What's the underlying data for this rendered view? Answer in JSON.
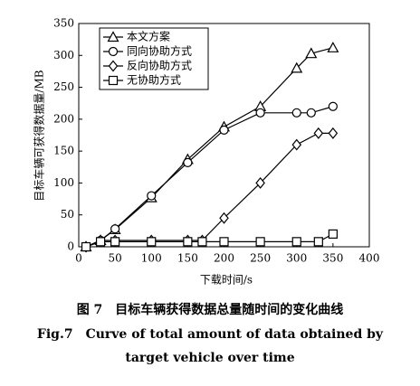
{
  "chart_data": {
    "type": "line",
    "xlabel": "下载时间/s",
    "ylabel": "目标车辆可获得数据量/MB",
    "xlim": [
      0,
      400
    ],
    "xticks": [
      0,
      50,
      100,
      150,
      200,
      250,
      300,
      350,
      400
    ],
    "ylim": [
      0,
      350
    ],
    "yticks": [
      0,
      50,
      100,
      150,
      200,
      250,
      300,
      350
    ],
    "legend": "upper left",
    "series": [
      {
        "name": "本文方案",
        "color": "#000000",
        "marker": "triangle",
        "x": [
          10,
          30,
          50,
          100,
          150,
          200,
          250,
          300,
          320,
          350
        ],
        "values": [
          0,
          10,
          27,
          77,
          137,
          188,
          220,
          280,
          303,
          312
        ]
      },
      {
        "name": "同向协助方式",
        "color": "#000000",
        "marker": "circle",
        "x": [
          10,
          30,
          50,
          100,
          150,
          200,
          250,
          300,
          320,
          350
        ],
        "values": [
          0,
          10,
          28,
          80,
          132,
          183,
          210,
          210,
          210,
          220
        ]
      },
      {
        "name": "反向协助方式",
        "color": "#000000",
        "marker": "diamond",
        "x": [
          10,
          30,
          50,
          100,
          150,
          170,
          200,
          250,
          300,
          330,
          350
        ],
        "values": [
          0,
          10,
          10,
          10,
          10,
          10,
          45,
          100,
          160,
          178,
          178
        ]
      },
      {
        "name": "无协助方式",
        "color": "#000000",
        "marker": "square",
        "x": [
          10,
          30,
          50,
          100,
          150,
          170,
          200,
          250,
          300,
          330,
          350
        ],
        "values": [
          0,
          8,
          8,
          8,
          8,
          8,
          8,
          8,
          8,
          8,
          20
        ]
      }
    ]
  },
  "caption": {
    "cn": "图 7　目标车辆获得数据总量随时间的变化曲线",
    "en1": "Fig.7　Curve of total amount of data obtained by",
    "en2": "target vehicle over time"
  }
}
